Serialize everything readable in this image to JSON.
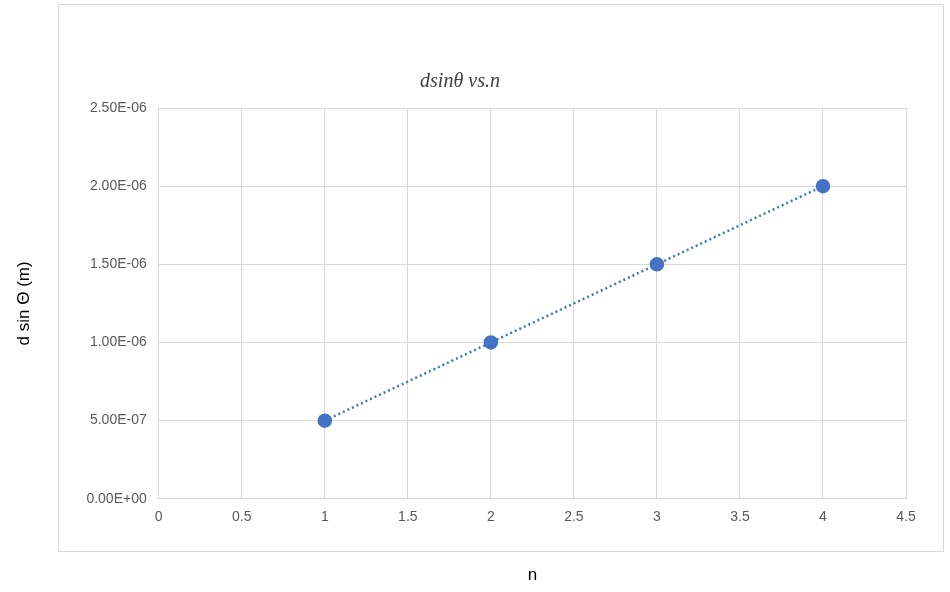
{
  "chart_data": {
    "type": "scatter",
    "title": "dsinθ vs.n",
    "x_label": "n",
    "y_label": "d sin Θ (m)",
    "x": [
      1,
      2,
      3,
      4
    ],
    "series": [
      {
        "color": "#4472c4",
        "marker": "circle",
        "line_style": "dotted",
        "values": [
          5e-07,
          1e-06,
          1.5e-06,
          2e-06
        ]
      }
    ],
    "xlim": [
      0,
      4.5
    ],
    "xticks": [
      0,
      0.5,
      1,
      1.5,
      2,
      2.5,
      3,
      3.5,
      4,
      4.5
    ],
    "ylim": [
      0,
      2.5e-06
    ],
    "yticks": [
      {
        "value": 0,
        "label": "0.00E+00"
      },
      {
        "value": 5e-07,
        "label": "5.00E-07"
      },
      {
        "value": 1e-06,
        "label": "1.00E-06"
      },
      {
        "value": 1.5e-06,
        "label": "1.50E-06"
      },
      {
        "value": 2e-06,
        "label": "2.00E-06"
      },
      {
        "value": 2.5e-06,
        "label": "2.50E-06"
      }
    ],
    "grid": true
  }
}
